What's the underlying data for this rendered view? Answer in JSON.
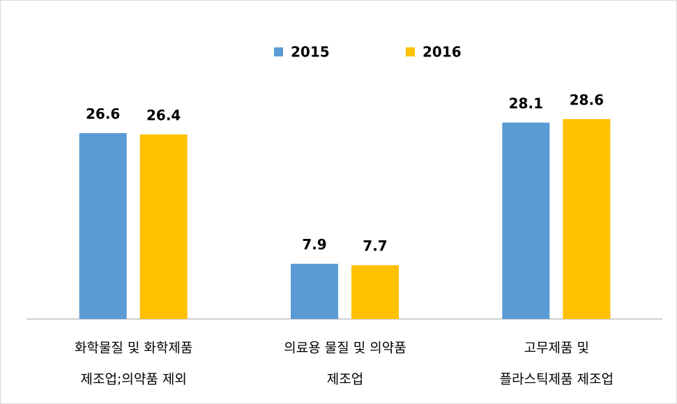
{
  "chart_data": {
    "type": "bar",
    "categories": [
      [
        "화학물질 및 화학제품",
        "제조업;의약품 제외"
      ],
      [
        "의료용 물질 및 의약품",
        "제조업"
      ],
      [
        "고무제품 및",
        "플라스틱제품 제조업"
      ]
    ],
    "series": [
      {
        "name": "2015",
        "color": "#5b9bd5",
        "values": [
          26.6,
          7.9,
          28.1
        ]
      },
      {
        "name": "2016",
        "color": "#ffc000",
        "values": [
          26.4,
          7.7,
          28.6
        ]
      }
    ],
    "legend": "top"
  }
}
